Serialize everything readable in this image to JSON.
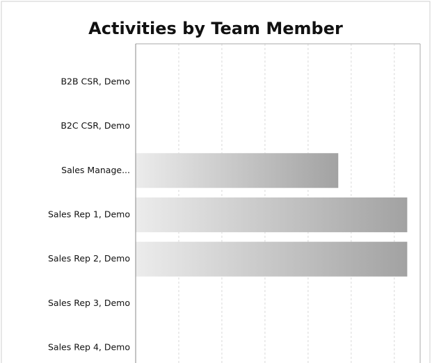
{
  "chart_data": {
    "type": "barh",
    "title": "Activities by Team Member",
    "categories": [
      "B2B CSR, Demo",
      "B2C CSR, Demo",
      "Sales Manage...",
      "Sales Rep 1, Demo",
      "Sales Rep 2, Demo",
      "Sales Rep 3, Demo",
      "Sales Rep 4, Demo"
    ],
    "values": [
      0,
      0,
      4.7,
      6.3,
      6.3,
      0,
      0
    ],
    "xlim": [
      0,
      6.6
    ],
    "xticks": [
      0,
      1,
      2,
      3,
      4,
      5,
      6
    ],
    "grid": true
  }
}
